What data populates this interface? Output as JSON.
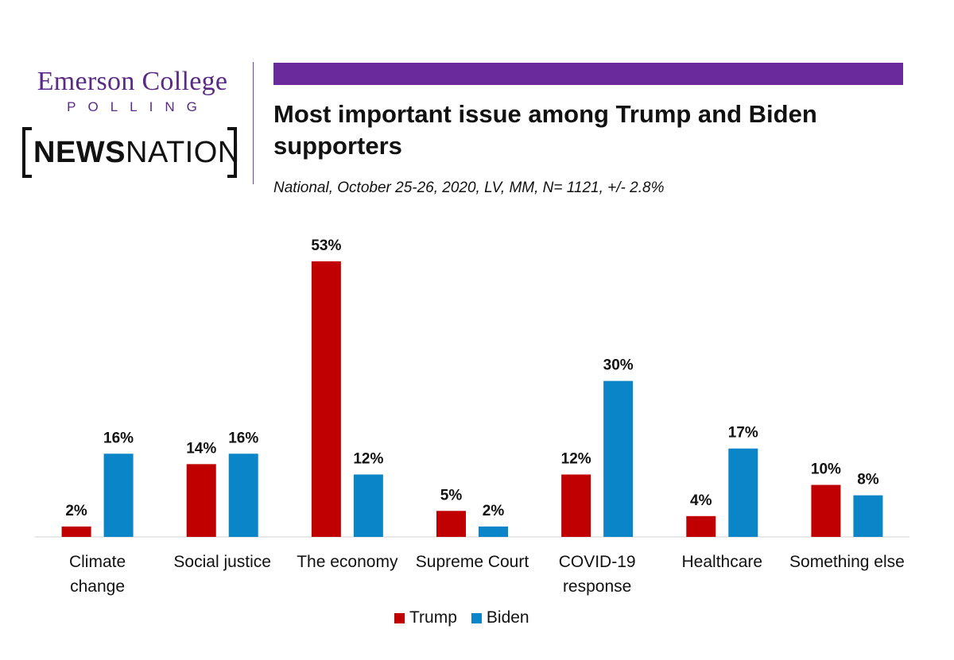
{
  "branding": {
    "emerson_line1": "Emerson College",
    "emerson_line2": "POLLING",
    "news_bold": "NEWS",
    "news_light": "NATION"
  },
  "colors": {
    "trump": "#c00000",
    "biden": "#0a85c7",
    "accent": "#6a2a9c"
  },
  "chart_data": {
    "type": "bar",
    "title": "Most important issue among Trump and Biden supporters",
    "subtitle": "National, October 25-26, 2020, LV, MM, N= 1121, +/- 2.8%",
    "categories": [
      [
        "Climate",
        "change"
      ],
      [
        "Social justice"
      ],
      [
        "The economy"
      ],
      [
        "Supreme Court"
      ],
      [
        "COVID-19",
        "response"
      ],
      [
        "Healthcare"
      ],
      [
        "Something else"
      ]
    ],
    "series": [
      {
        "name": "Trump",
        "values": [
          2,
          14,
          53,
          5,
          12,
          4,
          10
        ]
      },
      {
        "name": "Biden",
        "values": [
          16,
          16,
          12,
          2,
          30,
          17,
          8
        ]
      }
    ],
    "value_suffix": "%",
    "ylim": [
      0,
      55
    ],
    "grid": false,
    "legend_position": "bottom"
  }
}
